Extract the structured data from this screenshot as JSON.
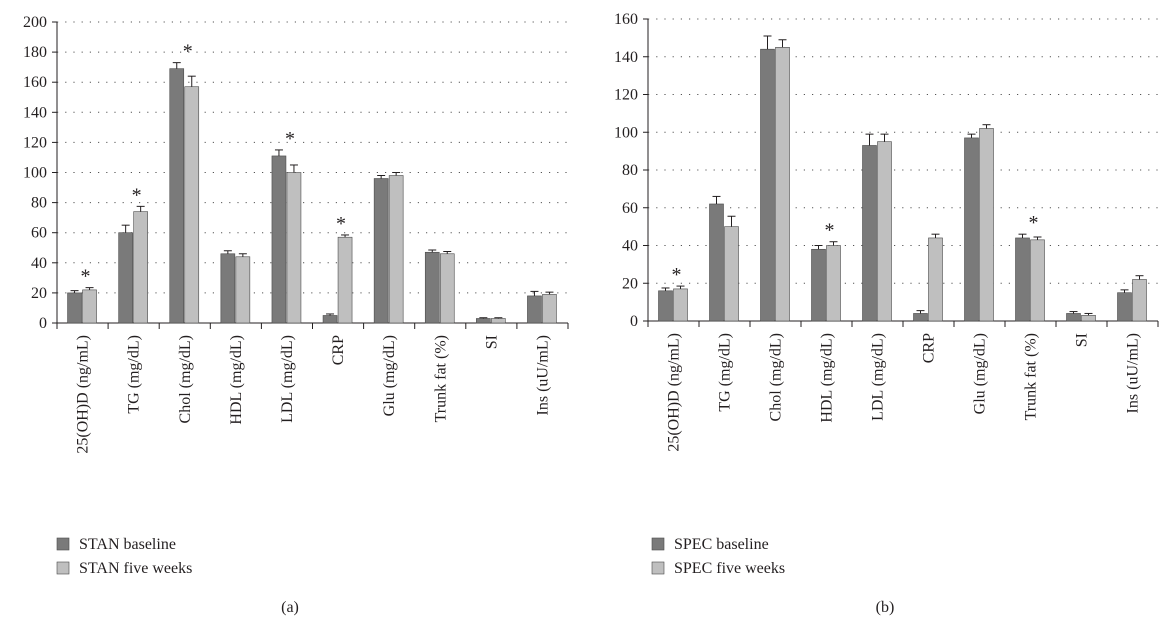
{
  "chart_data": [
    {
      "type": "bar",
      "panel_label": "(a)",
      "categories": [
        "25(OH)D (ng/mL)",
        "TG (mg/dL)",
        "Chol (mg/dL)",
        "HDL (mg/dL)",
        "LDL (mg/dL)",
        "CRP",
        "Glu (mg/dL)",
        "Trunk fat (%)",
        "SI",
        "Ins (uU/mL)"
      ],
      "series": [
        {
          "name": "STAN baseline",
          "values": [
            20,
            60,
            169,
            46,
            111,
            5,
            96,
            47,
            3,
            18
          ],
          "errors": [
            1.5,
            5,
            4,
            2,
            4,
            1,
            2,
            1.5,
            0.5,
            3
          ],
          "color": "#7a7a7a"
        },
        {
          "name": "STAN five weeks",
          "values": [
            22,
            74,
            157,
            44,
            100,
            57,
            98,
            46,
            3,
            19
          ],
          "errors": [
            1.5,
            3.5,
            7,
            2,
            5,
            1.5,
            2,
            1.5,
            0.5,
            1.5
          ],
          "color": "#bfbfbf"
        }
      ],
      "significance": [
        "*",
        "*",
        "*",
        "",
        "*",
        "*",
        "",
        "",
        "",
        ""
      ],
      "ylim": [
        0,
        200
      ],
      "yticks": [
        0,
        20,
        40,
        60,
        80,
        100,
        120,
        140,
        160,
        180,
        200
      ],
      "grid": true,
      "legend_position": "bottom-left"
    },
    {
      "type": "bar",
      "panel_label": "(b)",
      "categories": [
        "25(OH)D (ng/mL)",
        "TG (mg/dL)",
        "Chol (mg/dL)",
        "HDL (mg/dL)",
        "LDL (mg/dL)",
        "CRP",
        "Glu (mg/dL)",
        "Trunk fat (%)",
        "SI",
        "Ins (uU/mL)"
      ],
      "series": [
        {
          "name": "SPEC baseline",
          "values": [
            16,
            62,
            144,
            38,
            93,
            4,
            97,
            44,
            4,
            15
          ],
          "errors": [
            1.5,
            4,
            7,
            2,
            6,
            1.5,
            2,
            2,
            1,
            1.5
          ],
          "color": "#7a7a7a"
        },
        {
          "name": "SPEC five weeks",
          "values": [
            17,
            50,
            145,
            40,
            95,
            44,
            102,
            43,
            3,
            22
          ],
          "errors": [
            1.5,
            5.5,
            4,
            2,
            4,
            2,
            2,
            1.5,
            1,
            2
          ],
          "color": "#bfbfbf"
        }
      ],
      "significance": [
        "*",
        "",
        "",
        "*",
        "",
        "",
        "",
        "*",
        "",
        ""
      ],
      "ylim": [
        0,
        160
      ],
      "yticks": [
        0,
        20,
        40,
        60,
        80,
        100,
        120,
        140,
        160
      ],
      "grid": true,
      "legend_position": "bottom-left"
    }
  ]
}
